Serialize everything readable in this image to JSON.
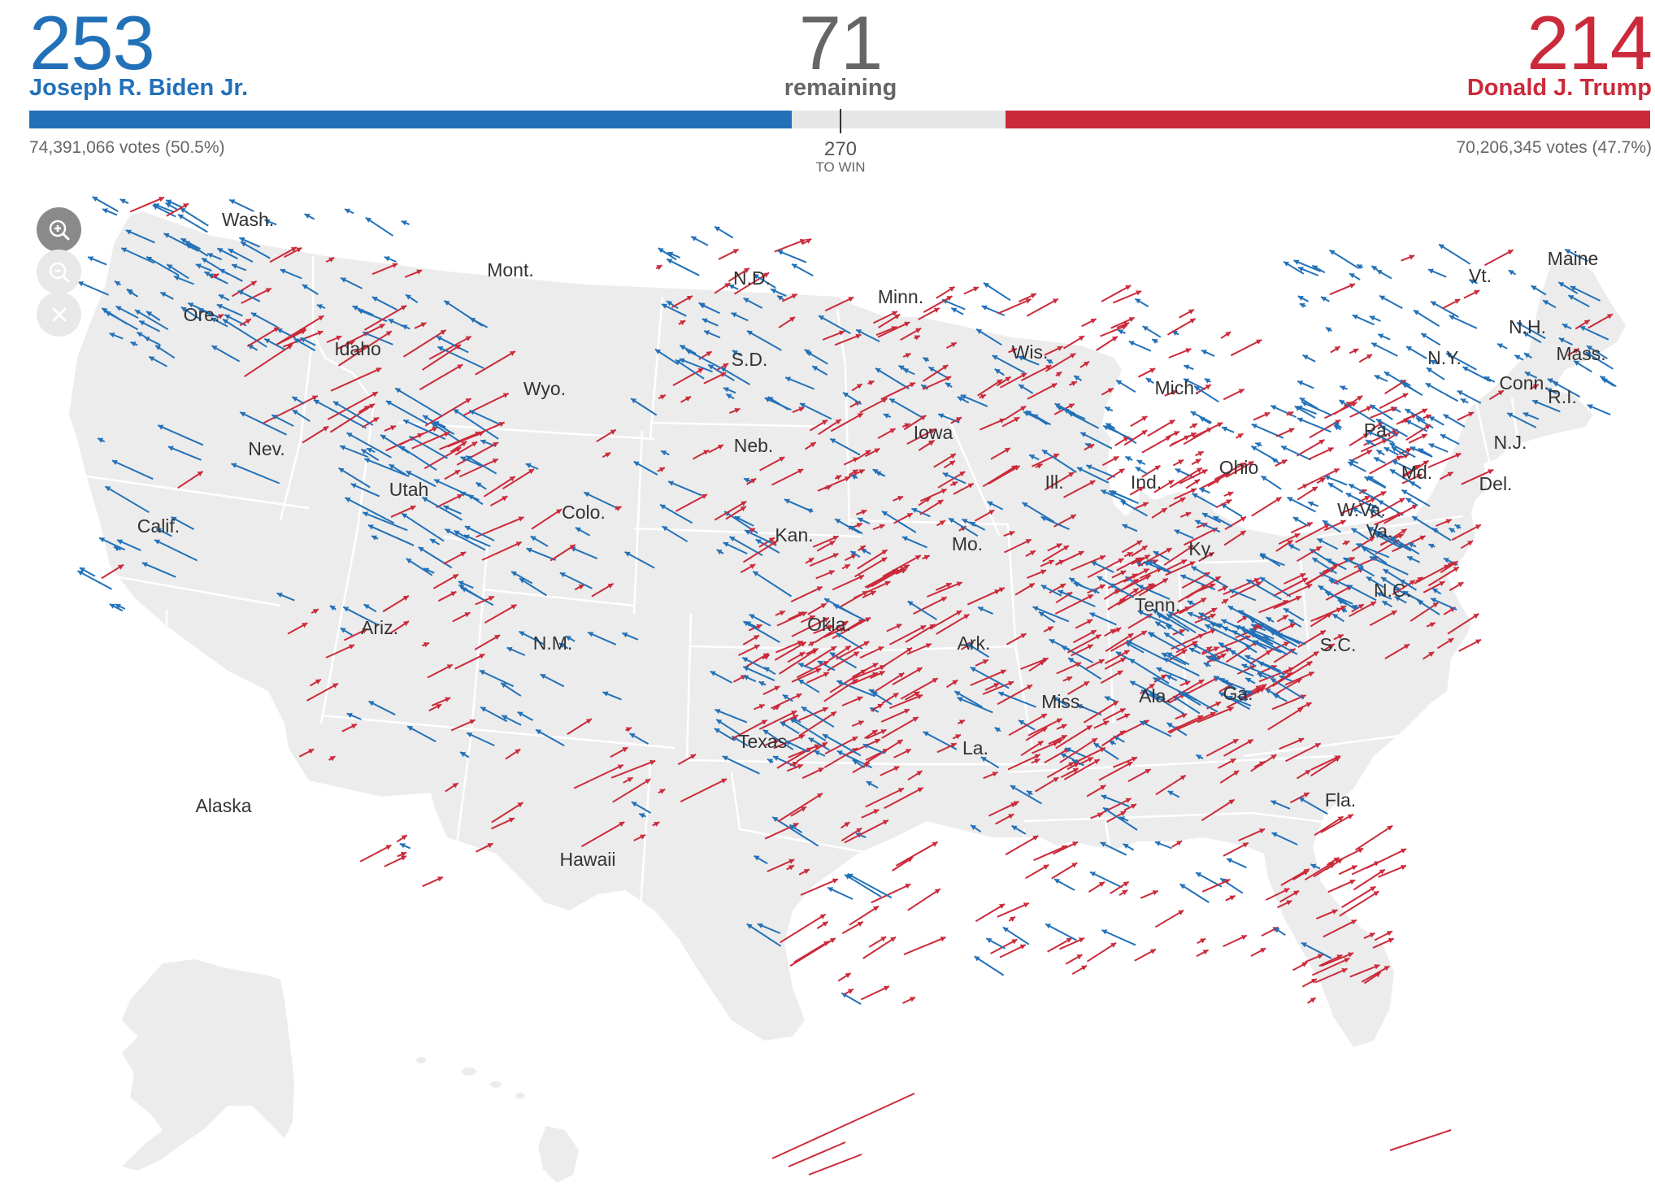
{
  "biden": {
    "ev": "253",
    "name": "Joseph R. Biden Jr.",
    "votes": "74,391,066 votes (50.5%)",
    "color": "#2271b8",
    "ev_value": 253
  },
  "trump": {
    "ev": "214",
    "name": "Donald J. Trump",
    "votes": "70,206,345 votes (47.7%)",
    "color": "#cb2a3a",
    "ev_value": 214
  },
  "remaining": {
    "value": "71",
    "label": "remaining",
    "ev_value": 71
  },
  "threshold": {
    "value": "270",
    "label": "TO WIN"
  },
  "map": {
    "land_color": "#ececec",
    "border_color": "#ffffff",
    "controls": [
      {
        "name": "zoom-in-button",
        "icon": "zoom-in-icon",
        "active": true
      },
      {
        "name": "zoom-out-button",
        "icon": "zoom-out-icon",
        "active": false
      },
      {
        "name": "reset-button",
        "icon": "close-icon",
        "active": false
      }
    ],
    "state_labels": [
      "Wash.",
      "Ore.",
      "Idaho",
      "Mont.",
      "N.D.",
      "Minn.",
      "Calif.",
      "Nev.",
      "Utah",
      "Wyo.",
      "S.D.",
      "Neb.",
      "Colo.",
      "Kan.",
      "Iowa",
      "Wis.",
      "Mich.",
      "Ill.",
      "Ind.",
      "Ohio",
      "Pa.",
      "N.Y.",
      "Vt.",
      "Maine",
      "N.H.",
      "Mass.",
      "Conn.",
      "R.I.",
      "N.J.",
      "Md.",
      "Del.",
      "W.Va.",
      "Va.",
      "Ky.",
      "Mo.",
      "Ariz.",
      "N.M.",
      "Okla.",
      "Ark.",
      "Tenn.",
      "N.C.",
      "S.C.",
      "Texas",
      "La.",
      "Miss.",
      "Ala.",
      "Ga.",
      "Fla.",
      "Alaska",
      "Hawaii"
    ]
  }
}
